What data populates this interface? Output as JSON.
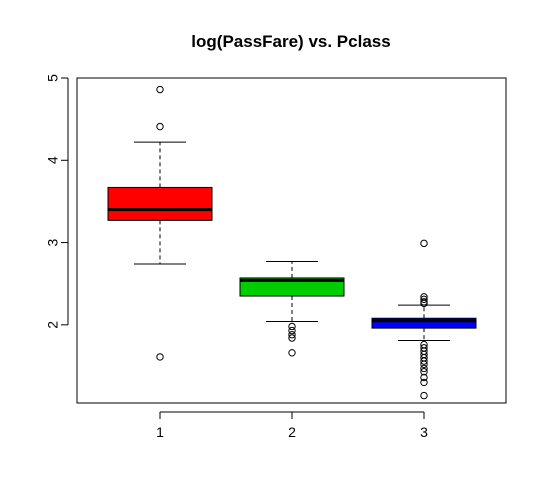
{
  "chart_data": {
    "type": "boxplot",
    "title": "log(PassFare) vs. Pclass",
    "xlabel": "",
    "ylabel": "",
    "categories": [
      "1",
      "2",
      "3"
    ],
    "y_ticks": [
      2,
      3,
      4,
      5
    ],
    "ylim": [
      1.05,
      5.0
    ],
    "colors": [
      "#ff0000",
      "#00cd00",
      "#0000ff"
    ],
    "boxes": [
      {
        "category": "1",
        "whisker_low": 2.74,
        "q1": 3.27,
        "median": 3.4,
        "q3": 3.67,
        "whisker_high": 4.22,
        "outliers": [
          4.86,
          4.41,
          1.61
        ]
      },
      {
        "category": "2",
        "whisker_low": 2.04,
        "q1": 2.35,
        "median": 2.54,
        "q3": 2.57,
        "whisker_high": 2.77,
        "outliers": [
          1.98,
          1.93,
          1.88,
          1.84,
          1.66
        ]
      },
      {
        "category": "3",
        "whisker_low": 1.81,
        "q1": 1.96,
        "median": 2.05,
        "q3": 2.08,
        "whisker_high": 2.24,
        "outliers": [
          2.99,
          2.34,
          2.31,
          2.28,
          2.26,
          1.76,
          1.72,
          1.68,
          1.64,
          1.6,
          1.56,
          1.52,
          1.47,
          1.43,
          1.36,
          1.3,
          1.14
        ]
      }
    ]
  }
}
